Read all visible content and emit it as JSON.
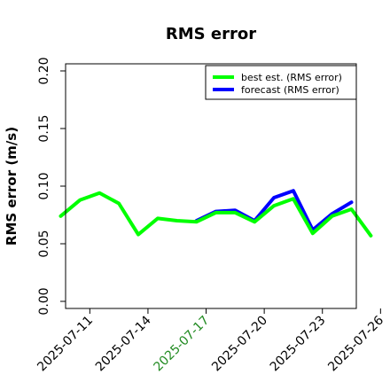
{
  "chart_data": {
    "type": "line",
    "title": "RMS error",
    "xlabel": "",
    "ylabel": "RMS error (m/s)",
    "ylim": [
      0,
      0.2
    ],
    "yticks": [
      "0.00",
      "0.05",
      "0.10",
      "0.15",
      "0.20"
    ],
    "ytick_values": [
      0,
      0.05,
      0.1,
      0.15,
      0.2
    ],
    "xlim": [
      -1.5,
      28.5
    ],
    "xticks": [
      {
        "label": "2025-07-11",
        "x": 1,
        "color": "#000000"
      },
      {
        "label": "2025-07-14",
        "x": 7,
        "color": "#000000"
      },
      {
        "label": "2025-07-17",
        "x": 13,
        "color": "#228b22"
      },
      {
        "label": "2025-07-20",
        "x": 19,
        "color": "#000000"
      },
      {
        "label": "2025-07-23",
        "x": 25,
        "color": "#000000"
      },
      {
        "label": "2025-07-26",
        "x": 31,
        "color": "#000000"
      }
    ],
    "grid": false,
    "legend_position": "top-right",
    "series": [
      {
        "name": "forecast (RMS error)",
        "color": "#0000ff",
        "x": [
          12,
          14,
          16,
          18,
          20,
          22,
          24,
          26,
          28
        ],
        "values": [
          0.07,
          0.078,
          0.079,
          0.07,
          0.09,
          0.096,
          0.062,
          0.076,
          0.086
        ]
      },
      {
        "name": "best est. (RMS error)",
        "color": "#00ff00",
        "x": [
          -2,
          0,
          2,
          4,
          6,
          8,
          10,
          12,
          14,
          16,
          18,
          20,
          22,
          24,
          26,
          28,
          30
        ],
        "values": [
          0.074,
          0.088,
          0.094,
          0.085,
          0.058,
          0.072,
          0.07,
          0.069,
          0.077,
          0.077,
          0.069,
          0.083,
          0.089,
          0.059,
          0.074,
          0.08,
          0.057
        ]
      }
    ],
    "legend": [
      {
        "name": "best est. (RMS error)",
        "color": "#00ff00"
      },
      {
        "name": "forecast (RMS error)",
        "color": "#0000ff"
      }
    ]
  }
}
